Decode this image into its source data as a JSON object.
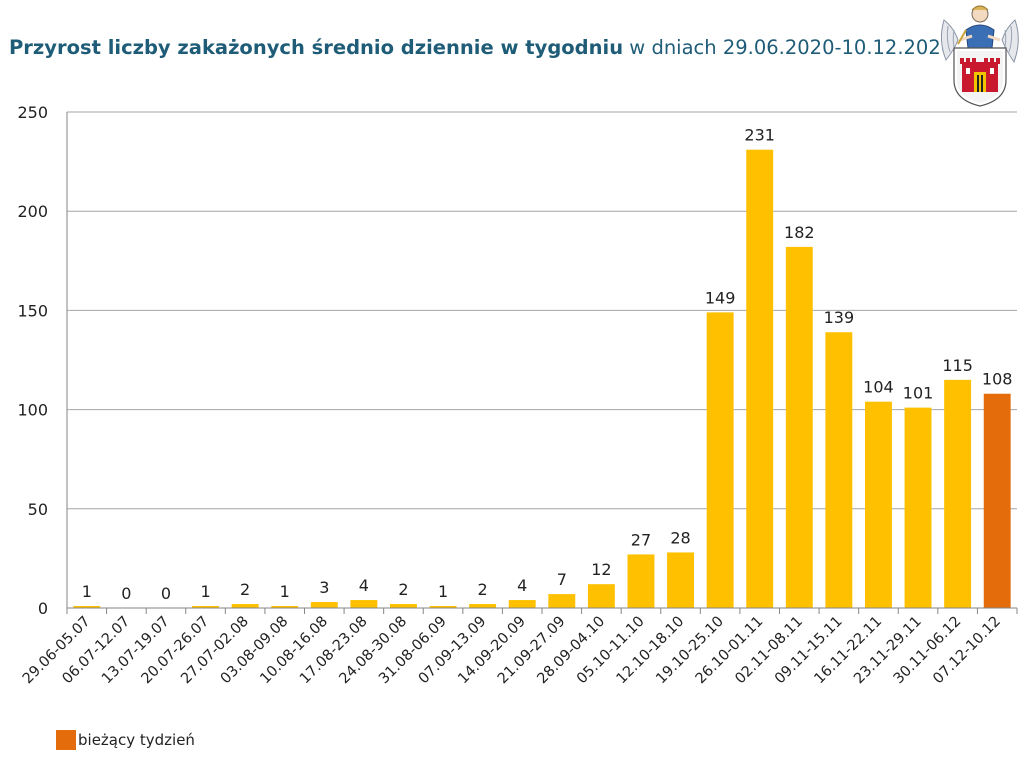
{
  "title": {
    "bold": "Przyrost liczby zakażonych średnio dziennie w tygodniu",
    "regular": " w dniach 29.06.2020-10.12.2020"
  },
  "logo_icon": "torun-coat-of-arms-icon",
  "colors": {
    "bar": "#ffc000",
    "current": "#e46c0a",
    "grid": "#a6a6a6",
    "title": "#1f5c77"
  },
  "legend": {
    "label": "bieżący tydzień"
  },
  "chart_data": {
    "type": "bar",
    "categories": [
      "29.06-05.07",
      "06.07-12.07",
      "13.07-19.07",
      "20.07-26.07",
      "27.07-02.08",
      "03.08-09.08",
      "10.08-16.08",
      "17.08-23.08",
      "24.08-30.08",
      "31.08-06.09",
      "07.09-13.09",
      "14.09-20.09",
      "21.09-27.09",
      "28.09-04.10",
      "05.10-11.10",
      "12.10-18.10",
      "19.10-25.10",
      "26.10-01.11",
      "02.11-08.11",
      "09.11-15.11",
      "16.11-22.11",
      "23.11-29.11",
      "30.11-06.12",
      "07.12-10.12"
    ],
    "values": [
      1,
      0,
      0,
      1,
      2,
      1,
      3,
      4,
      2,
      1,
      2,
      4,
      7,
      12,
      27,
      28,
      149,
      231,
      182,
      139,
      104,
      101,
      115,
      108
    ],
    "highlight_last": true,
    "ylim": [
      0,
      250
    ],
    "yticks": [
      0,
      50,
      100,
      150,
      200,
      250
    ],
    "grid": true,
    "legend_position": "bottom-left"
  }
}
